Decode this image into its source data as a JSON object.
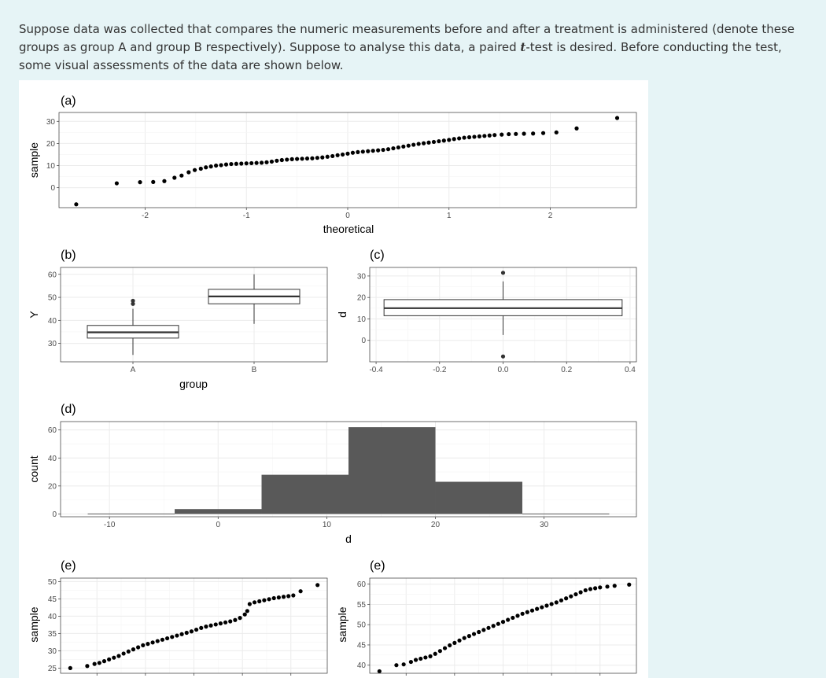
{
  "intro": {
    "before": "Suppose data was collected that compares the numeric measurements before and after a treatment is administered (denote these groups as group A and group B respectively). Suppose to analyse this data, a paired ",
    "t_symbol": "t",
    "after": "-test is desired. Before conducting the test, some visual assessments of the data are shown below."
  },
  "chart_data": [
    {
      "panel": "(a)",
      "type": "scatter",
      "xlabel": "theoretical",
      "ylabel": "sample",
      "xticks": [
        -2,
        -1,
        0,
        1,
        2
      ],
      "yticks": [
        0,
        10,
        20,
        30
      ],
      "xlim": [
        -2.85,
        2.85
      ],
      "ylim": [
        -9,
        34
      ],
      "points": [
        [
          -2.68,
          -7.5
        ],
        [
          -2.28,
          2.0
        ],
        [
          -2.05,
          2.5
        ],
        [
          -1.92,
          2.6
        ],
        [
          -1.81,
          3.0
        ],
        [
          -1.71,
          4.5
        ],
        [
          -1.64,
          5.5
        ],
        [
          -1.57,
          7.0
        ],
        [
          -1.51,
          8.0
        ],
        [
          -1.45,
          8.6
        ],
        [
          -1.4,
          9.2
        ],
        [
          -1.35,
          9.6
        ],
        [
          -1.3,
          10.0
        ],
        [
          -1.25,
          10.2
        ],
        [
          -1.2,
          10.5
        ],
        [
          -1.15,
          10.7
        ],
        [
          -1.1,
          10.8
        ],
        [
          -1.05,
          10.9
        ],
        [
          -1.0,
          11.0
        ],
        [
          -0.95,
          11.1
        ],
        [
          -0.9,
          11.2
        ],
        [
          -0.85,
          11.3
        ],
        [
          -0.8,
          11.5
        ],
        [
          -0.75,
          11.8
        ],
        [
          -0.7,
          12.2
        ],
        [
          -0.65,
          12.5
        ],
        [
          -0.6,
          12.7
        ],
        [
          -0.55,
          12.9
        ],
        [
          -0.5,
          13.0
        ],
        [
          -0.45,
          13.1
        ],
        [
          -0.4,
          13.2
        ],
        [
          -0.35,
          13.3
        ],
        [
          -0.3,
          13.5
        ],
        [
          -0.25,
          13.7
        ],
        [
          -0.2,
          14.0
        ],
        [
          -0.15,
          14.3
        ],
        [
          -0.1,
          14.7
        ],
        [
          -0.05,
          15.0
        ],
        [
          0.0,
          15.4
        ],
        [
          0.05,
          15.8
        ],
        [
          0.1,
          16.1
        ],
        [
          0.15,
          16.3
        ],
        [
          0.2,
          16.5
        ],
        [
          0.25,
          16.7
        ],
        [
          0.3,
          16.9
        ],
        [
          0.35,
          17.1
        ],
        [
          0.4,
          17.4
        ],
        [
          0.45,
          17.8
        ],
        [
          0.5,
          18.2
        ],
        [
          0.55,
          18.6
        ],
        [
          0.6,
          19.0
        ],
        [
          0.65,
          19.4
        ],
        [
          0.7,
          19.8
        ],
        [
          0.75,
          20.1
        ],
        [
          0.8,
          20.4
        ],
        [
          0.85,
          20.7
        ],
        [
          0.9,
          21.0
        ],
        [
          0.95,
          21.3
        ],
        [
          1.0,
          21.6
        ],
        [
          1.05,
          22.0
        ],
        [
          1.1,
          22.3
        ],
        [
          1.15,
          22.6
        ],
        [
          1.2,
          22.8
        ],
        [
          1.25,
          23.0
        ],
        [
          1.3,
          23.2
        ],
        [
          1.35,
          23.4
        ],
        [
          1.4,
          23.6
        ],
        [
          1.45,
          23.8
        ],
        [
          1.52,
          24.0
        ],
        [
          1.59,
          24.2
        ],
        [
          1.66,
          24.3
        ],
        [
          1.74,
          24.4
        ],
        [
          1.83,
          24.5
        ],
        [
          1.93,
          24.7
        ],
        [
          2.06,
          25.0
        ],
        [
          2.26,
          26.8
        ],
        [
          2.66,
          31.5
        ]
      ]
    },
    {
      "panel": "(b)",
      "type": "boxplot",
      "xlabel": "group",
      "ylabel": "Y",
      "categories": [
        "A",
        "B"
      ],
      "yticks": [
        30,
        40,
        50,
        60
      ],
      "ylim": [
        22,
        63
      ],
      "boxes": [
        {
          "group": "A",
          "lower_whisker": 25,
          "q1": 32.3,
          "median": 34.8,
          "q3": 37.8,
          "upper_whisker": 45,
          "outliers": [
            47.2,
            48.5
          ]
        },
        {
          "group": "B",
          "lower_whisker": 38.5,
          "q1": 47.2,
          "median": 50.4,
          "q3": 53.5,
          "upper_whisker": 60,
          "outliers": []
        }
      ]
    },
    {
      "panel": "(c)",
      "type": "boxplot",
      "xlabel": "",
      "ylabel": "d",
      "xticks": [
        -0.4,
        -0.2,
        0.0,
        0.2,
        0.4
      ],
      "xlim": [
        -0.42,
        0.42
      ],
      "yticks": [
        0,
        10,
        20,
        30
      ],
      "ylim": [
        -10,
        34
      ],
      "box": {
        "x_from": -0.375,
        "x_to": 0.375,
        "x_center": 0.0,
        "lower_whisker": 2.5,
        "q1": 11.5,
        "median": 15.0,
        "q3": 19.0,
        "upper_whisker": 27.5,
        "outliers": [
          31.5,
          -7.5
        ]
      }
    },
    {
      "panel": "(d)",
      "type": "bar",
      "xlabel": "d",
      "ylabel": "count",
      "xticks": [
        -10,
        0,
        10,
        20,
        30
      ],
      "yticks": [
        0,
        20,
        40,
        60
      ],
      "xlim": [
        -14.5,
        38.5
      ],
      "ylim": [
        -2,
        66
      ],
      "bins": [
        [
          -12,
          -4,
          0.3
        ],
        [
          -4,
          4,
          3.5
        ],
        [
          4,
          12,
          28
        ],
        [
          12,
          20,
          62
        ],
        [
          20,
          28,
          23
        ],
        [
          28,
          36,
          0.3
        ]
      ]
    },
    {
      "panel": "(e)",
      "type": "scatter",
      "ylabel": "sample",
      "yticks": [
        25,
        30,
        35,
        40,
        45,
        50
      ],
      "xlim": [
        -2.75,
        2.75
      ],
      "ylim": [
        23.5,
        51
      ],
      "points": [
        [
          -2.55,
          25.0
        ],
        [
          -2.2,
          25.6
        ],
        [
          -2.05,
          26.2
        ],
        [
          -1.95,
          26.5
        ],
        [
          -1.85,
          27.0
        ],
        [
          -1.75,
          27.5
        ],
        [
          -1.65,
          28.0
        ],
        [
          -1.55,
          28.5
        ],
        [
          -1.45,
          29.2
        ],
        [
          -1.35,
          29.8
        ],
        [
          -1.25,
          30.4
        ],
        [
          -1.15,
          31.0
        ],
        [
          -1.05,
          31.6
        ],
        [
          -0.95,
          32.0
        ],
        [
          -0.85,
          32.4
        ],
        [
          -0.75,
          32.8
        ],
        [
          -0.65,
          33.2
        ],
        [
          -0.55,
          33.6
        ],
        [
          -0.45,
          34.0
        ],
        [
          -0.35,
          34.4
        ],
        [
          -0.25,
          34.8
        ],
        [
          -0.15,
          35.2
        ],
        [
          -0.05,
          35.6
        ],
        [
          0.05,
          36.1
        ],
        [
          0.15,
          36.6
        ],
        [
          0.25,
          37.0
        ],
        [
          0.35,
          37.3
        ],
        [
          0.45,
          37.6
        ],
        [
          0.55,
          37.9
        ],
        [
          0.65,
          38.2
        ],
        [
          0.75,
          38.5
        ],
        [
          0.85,
          38.9
        ],
        [
          0.95,
          39.5
        ],
        [
          1.05,
          40.5
        ],
        [
          1.1,
          41.5
        ],
        [
          1.15,
          43.5
        ],
        [
          1.25,
          44.0
        ],
        [
          1.35,
          44.3
        ],
        [
          1.45,
          44.6
        ],
        [
          1.55,
          44.9
        ],
        [
          1.65,
          45.2
        ],
        [
          1.75,
          45.4
        ],
        [
          1.85,
          45.6
        ],
        [
          1.95,
          45.8
        ],
        [
          2.05,
          46.0
        ],
        [
          2.2,
          47.2
        ],
        [
          2.55,
          49.0
        ]
      ]
    },
    {
      "panel": "(e)",
      "type": "scatter",
      "ylabel": "sample",
      "yticks": [
        40,
        45,
        50,
        55,
        60
      ],
      "xlim": [
        -2.75,
        2.75
      ],
      "ylim": [
        38,
        61.5
      ],
      "points": [
        [
          -2.55,
          38.5
        ],
        [
          -2.2,
          40.0
        ],
        [
          -2.05,
          40.2
        ],
        [
          -1.9,
          40.8
        ],
        [
          -1.8,
          41.3
        ],
        [
          -1.7,
          41.6
        ],
        [
          -1.6,
          41.9
        ],
        [
          -1.5,
          42.2
        ],
        [
          -1.4,
          42.8
        ],
        [
          -1.3,
          43.5
        ],
        [
          -1.2,
          44.2
        ],
        [
          -1.1,
          44.9
        ],
        [
          -1.0,
          45.5
        ],
        [
          -0.9,
          46.1
        ],
        [
          -0.8,
          46.7
        ],
        [
          -0.7,
          47.2
        ],
        [
          -0.6,
          47.7
        ],
        [
          -0.5,
          48.2
        ],
        [
          -0.4,
          48.7
        ],
        [
          -0.3,
          49.2
        ],
        [
          -0.2,
          49.7
        ],
        [
          -0.1,
          50.2
        ],
        [
          0.0,
          50.7
        ],
        [
          0.1,
          51.2
        ],
        [
          0.2,
          51.7
        ],
        [
          0.3,
          52.2
        ],
        [
          0.4,
          52.7
        ],
        [
          0.5,
          53.1
        ],
        [
          0.6,
          53.5
        ],
        [
          0.7,
          53.9
        ],
        [
          0.8,
          54.3
        ],
        [
          0.9,
          54.7
        ],
        [
          1.0,
          55.1
        ],
        [
          1.1,
          55.5
        ],
        [
          1.2,
          56.0
        ],
        [
          1.3,
          56.5
        ],
        [
          1.4,
          57.0
        ],
        [
          1.5,
          57.5
        ],
        [
          1.6,
          58.0
        ],
        [
          1.7,
          58.5
        ],
        [
          1.8,
          58.8
        ],
        [
          1.9,
          59.0
        ],
        [
          2.0,
          59.2
        ],
        [
          2.15,
          59.4
        ],
        [
          2.3,
          59.6
        ],
        [
          2.6,
          59.9
        ]
      ]
    }
  ]
}
